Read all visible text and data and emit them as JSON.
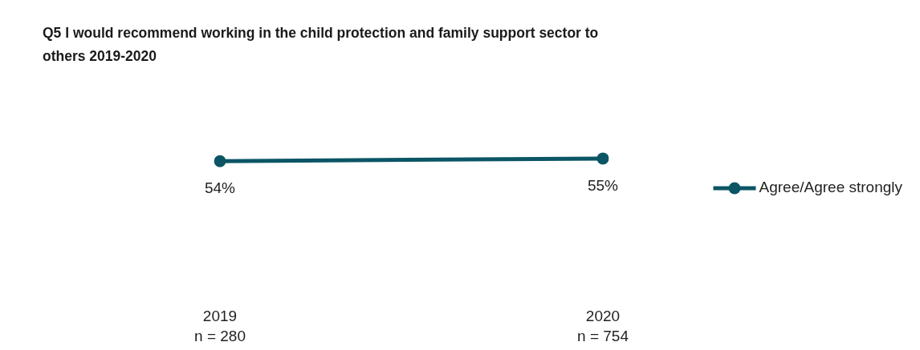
{
  "chart_data": {
    "type": "line",
    "title": "Q5 I would recommend working in the child protection and family support sector to others 2019-2020",
    "categories": [
      "2019\nn = 280",
      "2020\nn = 754"
    ],
    "series": [
      {
        "name": "Agree/Agree strongly",
        "color": "#0b5565",
        "values": [
          54,
          55
        ],
        "value_labels": [
          "54%",
          "55%"
        ]
      }
    ],
    "legend": "right",
    "marker": "circle",
    "line_style": "solid",
    "tick_labels": "x",
    "grid": false
  }
}
